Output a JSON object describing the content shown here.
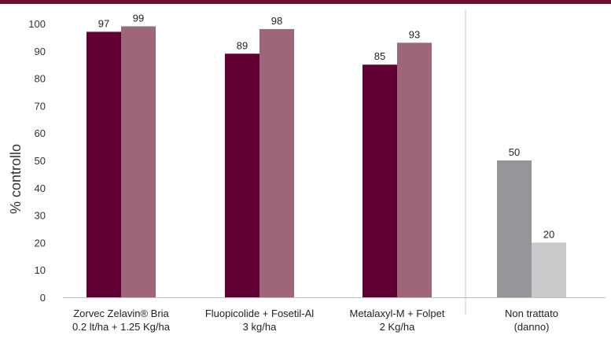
{
  "chart_data": {
    "type": "bar",
    "ylabel": "% controllo",
    "ylim": [
      0,
      100
    ],
    "yticks": [
      0,
      10,
      20,
      30,
      40,
      50,
      60,
      70,
      80,
      90,
      100
    ],
    "grid": false,
    "groups": [
      {
        "label_line1": "Zorvec Zelavin® Bria",
        "label_line2": "0.2 lt/ha + 1.25 Kg/ha",
        "values": [
          97,
          99
        ],
        "colors": [
          "#620033",
          "#9e6679"
        ]
      },
      {
        "label_line1": "Fluopicolide + Fosetil-Al",
        "label_line2": "3 kg/ha",
        "values": [
          89,
          98
        ],
        "colors": [
          "#620033",
          "#9e6679"
        ]
      },
      {
        "label_line1": "Metalaxyl-M + Folpet",
        "label_line2": "2 Kg/ha",
        "values": [
          85,
          93
        ],
        "colors": [
          "#620033",
          "#9e6679"
        ]
      },
      {
        "label_line1": "Non trattato",
        "label_line2": "(danno)",
        "values": [
          50,
          20
        ],
        "colors": [
          "#939598",
          "#c8c9cb"
        ]
      }
    ]
  }
}
